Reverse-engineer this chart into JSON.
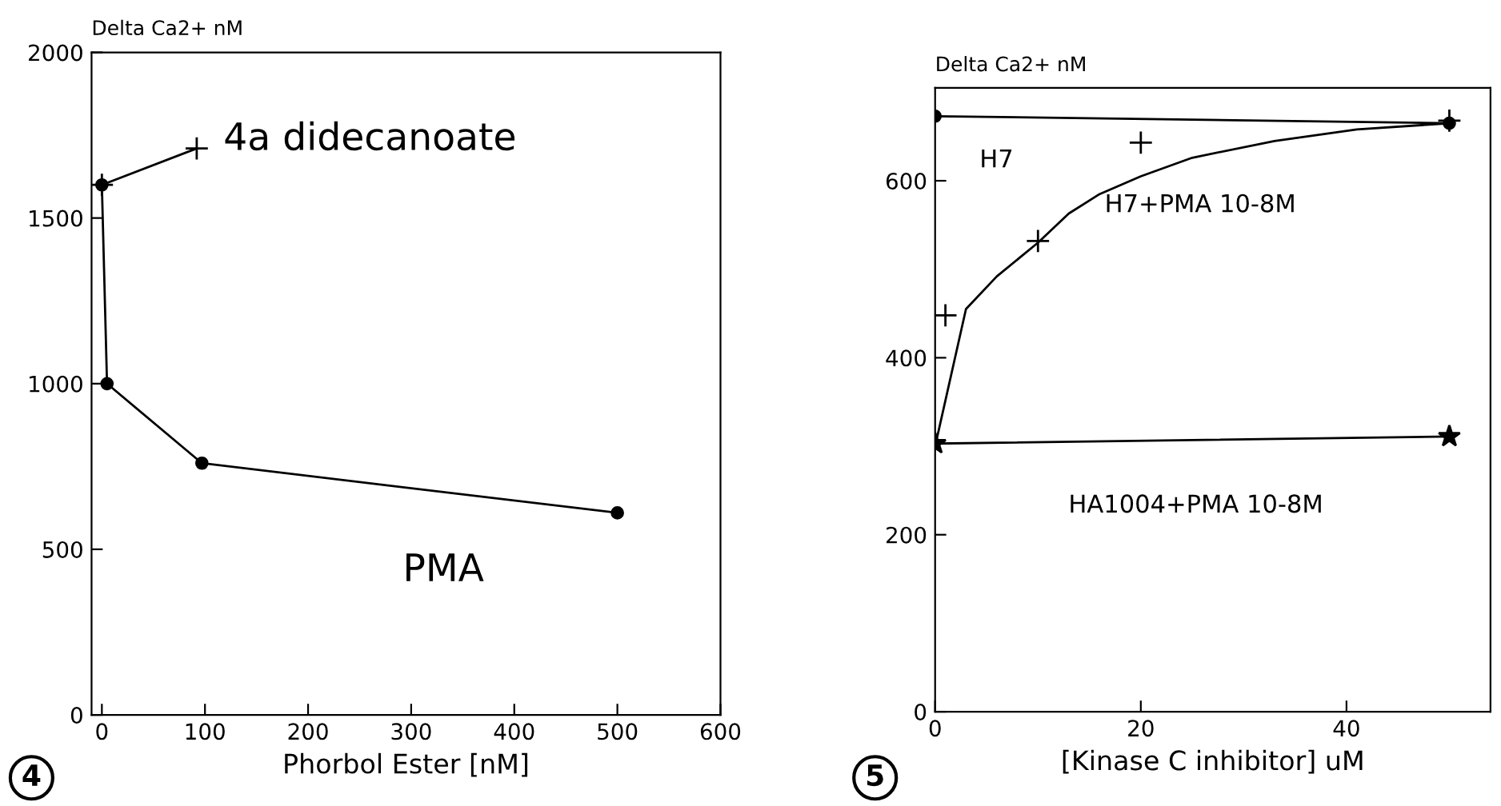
{
  "chart_data": [
    {
      "type": "line",
      "xlabel": "Phorbol Ester [nM]",
      "ylabel": "Delta Ca2+ nM",
      "xlim": [
        -10,
        600
      ],
      "ylim": [
        0,
        2000
      ],
      "xticks": [
        0,
        100,
        200,
        300,
        400,
        500,
        600
      ],
      "yticks": [
        0,
        500,
        1000,
        1500,
        2000
      ],
      "grid": false,
      "annotations": [
        "4"
      ],
      "series": [
        {
          "name": "4a didecanoate",
          "color": "#000000",
          "x": [
            0,
            92
          ],
          "values": [
            1600,
            1710
          ],
          "marker": "cross",
          "line_style": "solid"
        },
        {
          "name": "PMA",
          "color": "#000000",
          "x": [
            0,
            5,
            97,
            500
          ],
          "values": [
            1600,
            1000,
            760,
            610
          ],
          "marker": "circle",
          "line_style": "solid"
        }
      ]
    },
    {
      "type": "line",
      "xlabel": "[Kinase C inhibitor] uM",
      "ylabel": "Delta Ca2+ nM",
      "xlim": [
        0,
        54
      ],
      "ylim": [
        0,
        705
      ],
      "xticks": [
        0,
        20,
        40
      ],
      "yticks": [
        0,
        200,
        400,
        600
      ],
      "grid": false,
      "annotations": [
        "5"
      ],
      "series": [
        {
          "name": "H7",
          "color": "#000000",
          "x": [
            0,
            50
          ],
          "values": [
            673,
            665
          ],
          "marker": "circle",
          "line_style": "solid"
        },
        {
          "type": "line",
          "color": "#000000",
          "x": [
            0,
            3,
            6,
            10,
            13,
            16,
            20,
            25,
            33,
            41,
            50
          ],
          "values": [
            300,
            455,
            492,
            530,
            563,
            585,
            605,
            626,
            645,
            658,
            665
          ],
          "marker": "none",
          "line_style": "solid"
        },
        {
          "type": "scatter",
          "name": "H7+PMA 10-8M",
          "color": "#000000",
          "x": [
            1,
            10,
            20,
            50
          ],
          "values": [
            448,
            532,
            643,
            668
          ],
          "marker": "cross"
        },
        {
          "name": "HA1004+PMA 10-8M",
          "color": "#000000",
          "x": [
            0,
            50
          ],
          "values": [
            303,
            311
          ],
          "marker": "star",
          "line_style": "solid"
        }
      ]
    }
  ]
}
